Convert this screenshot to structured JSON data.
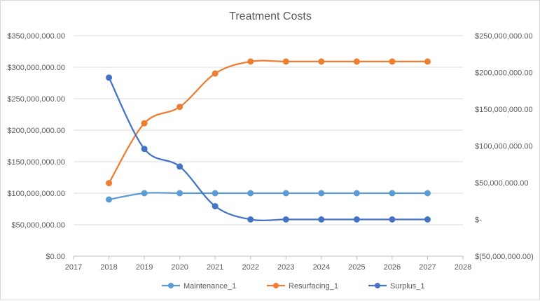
{
  "chart_data": {
    "type": "line",
    "title": "Treatment Costs",
    "x": [
      2018,
      2019,
      2020,
      2021,
      2022,
      2023,
      2024,
      2025,
      2026,
      2027
    ],
    "xlim": [
      2017,
      2028
    ],
    "x_ticks": [
      "2017",
      "2018",
      "2019",
      "2020",
      "2021",
      "2022",
      "2023",
      "2024",
      "2025",
      "2026",
      "2027",
      "2028"
    ],
    "ylim_left": [
      0,
      350000000
    ],
    "y_ticks_left": [
      "$0.00",
      "$50,000,000.00",
      "$100,000,000.00",
      "$150,000,000.00",
      "$200,000,000.00",
      "$250,000,000.00",
      "$300,000,000.00",
      "$350,000,000.00"
    ],
    "ylim_right": [
      -50000000,
      250000000
    ],
    "y_ticks_right": [
      "$(50,000,000.00)",
      "$-",
      "$50,000,000.00",
      "$100,000,000.00",
      "$150,000,000.00",
      "$200,000,000.00",
      "$250,000,000.00"
    ],
    "grid": "horizontal",
    "legend_position": "bottom",
    "series": [
      {
        "name": "Maintenance_1",
        "axis": "left",
        "color": "#5B9BD5",
        "values": [
          90000000,
          100000000,
          100000000,
          100000000,
          100000000,
          100000000,
          100000000,
          100000000,
          100000000,
          100000000
        ]
      },
      {
        "name": "Resurfacing_1",
        "axis": "left",
        "color": "#ED7D31",
        "values": [
          116000000,
          211000000,
          237000000,
          290000000,
          309000000,
          309000000,
          309000000,
          309000000,
          309000000,
          309000000
        ]
      },
      {
        "name": "Surplus_1",
        "axis": "right",
        "color": "#4472C4",
        "values": [
          193000000,
          96000000,
          72000000,
          18000000,
          0,
          0,
          0,
          0,
          0,
          0
        ]
      }
    ]
  }
}
